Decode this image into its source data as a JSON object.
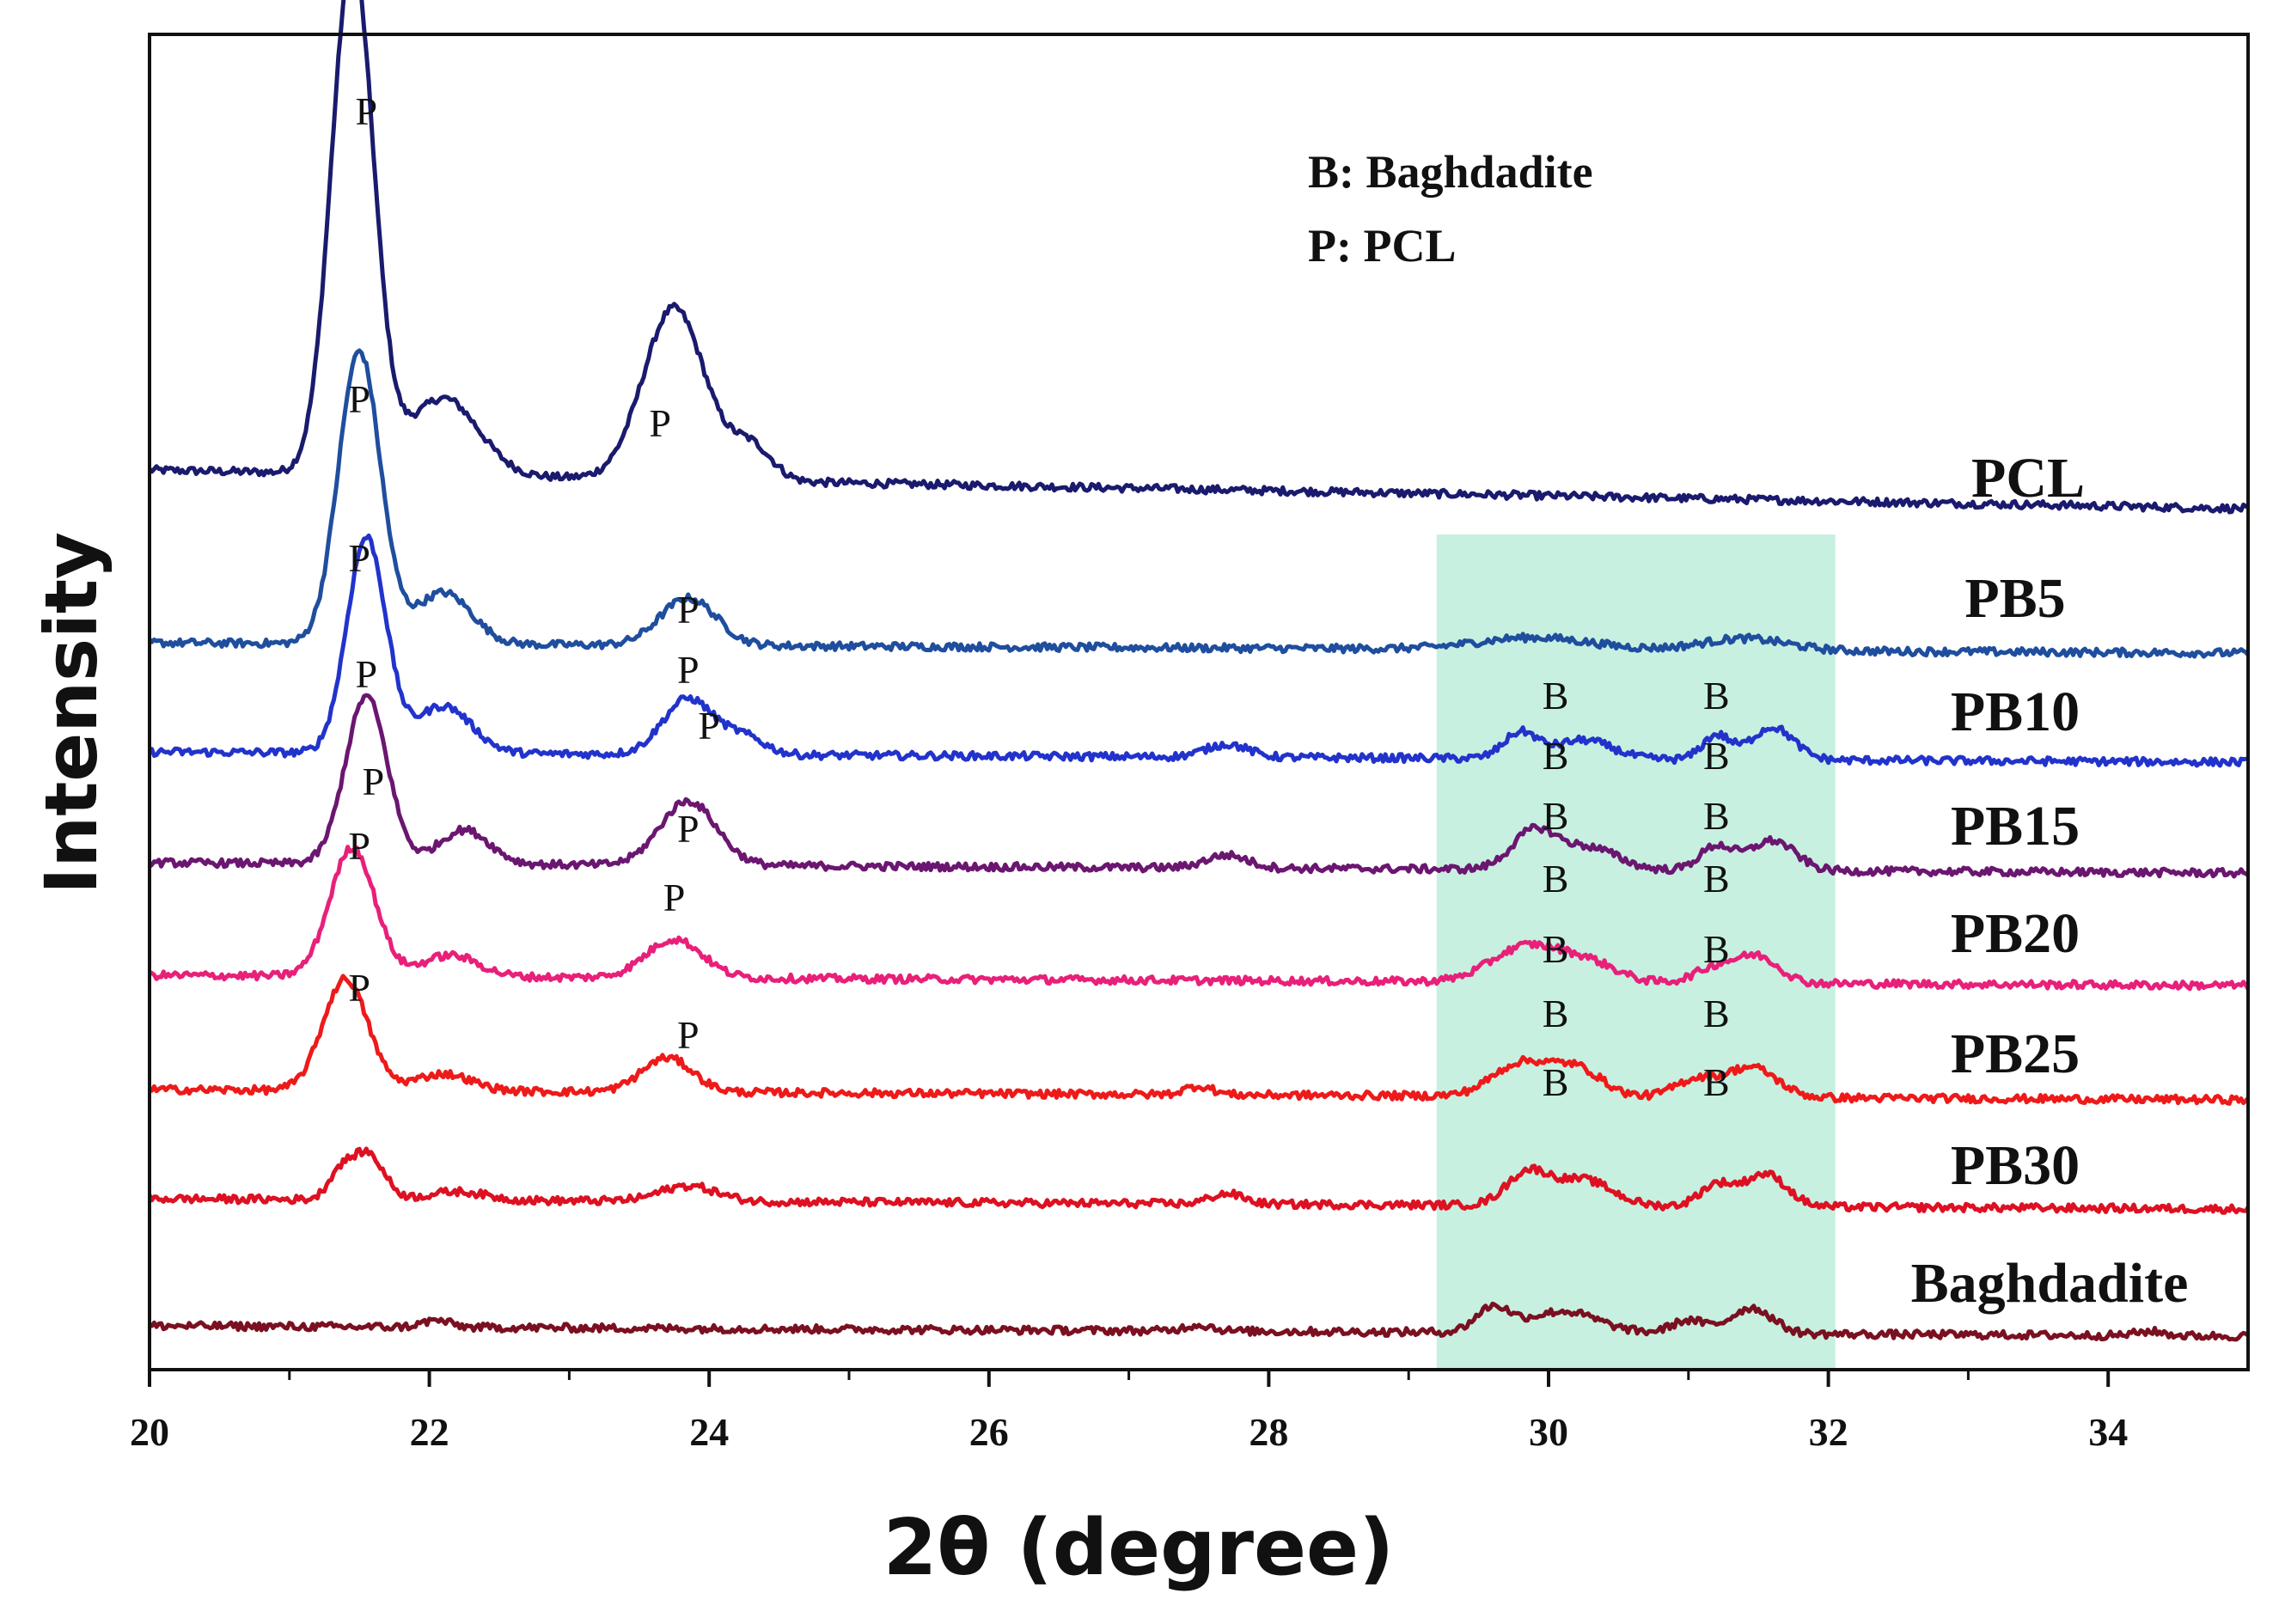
{
  "chart_data": {
    "type": "line",
    "title": "",
    "xlabel": "2θ (degree)",
    "ylabel": "Intensity",
    "xlim": [
      20,
      35
    ],
    "xticks": [
      "20",
      "22",
      "24",
      "26",
      "28",
      "30",
      "32",
      "34"
    ],
    "tick_values": [
      20,
      22,
      24,
      26,
      28,
      30,
      32,
      34
    ],
    "grid": false,
    "legend_notes": [
      "B: Baghdadite",
      "P: PCL"
    ],
    "highlight_region": {
      "x_from": 29.2,
      "x_to": 32.05,
      "color": "#c8f0e0"
    },
    "series": [
      {
        "name": "PCL",
        "color": "#1a1a6e",
        "baseline": 370,
        "end_value": 20,
        "amp_scale": 1.0,
        "peaks": [
          [
            21.45,
            0.15,
            600
          ],
          [
            22.1,
            0.25,
            90
          ],
          [
            23.75,
            0.22,
            200
          ],
          [
            24.3,
            0.15,
            40
          ]
        ]
      },
      {
        "name": "PB5",
        "color": "#1f4e9e",
        "baseline": 290,
        "end_value": 0,
        "amp_scale": 1.0,
        "peaks": [
          [
            21.5,
            0.15,
            340
          ],
          [
            22.1,
            0.2,
            60
          ],
          [
            23.85,
            0.2,
            55
          ],
          [
            29.9,
            0.4,
            14
          ],
          [
            31.4,
            0.3,
            14
          ]
        ]
      },
      {
        "name": "PB10",
        "color": "#2233cc",
        "baseline": 215,
        "end_value": 0,
        "amp_scale": 1.0,
        "peaks": [
          [
            21.55,
            0.14,
            250
          ],
          [
            22.1,
            0.2,
            55
          ],
          [
            23.85,
            0.18,
            65
          ],
          [
            24.25,
            0.15,
            20
          ],
          [
            27.7,
            0.15,
            15
          ],
          [
            29.8,
            0.12,
            30
          ],
          [
            30.25,
            0.2,
            22
          ],
          [
            31.2,
            0.1,
            28
          ],
          [
            31.6,
            0.15,
            38
          ]
        ]
      },
      {
        "name": "PB15",
        "color": "#6b1670",
        "baseline": 135,
        "end_value": 0,
        "amp_scale": 1.0,
        "peaks": [
          [
            21.55,
            0.15,
            195
          ],
          [
            22.25,
            0.18,
            40
          ],
          [
            23.85,
            0.2,
            75
          ],
          [
            27.7,
            0.15,
            15
          ],
          [
            29.9,
            0.16,
            45
          ],
          [
            30.3,
            0.2,
            25
          ],
          [
            31.2,
            0.12,
            28
          ],
          [
            31.6,
            0.16,
            35
          ]
        ]
      },
      {
        "name": "PB20",
        "color": "#e8207a",
        "baseline": 60,
        "end_value": 0,
        "amp_scale": 1.0,
        "peaks": [
          [
            21.45,
            0.16,
            150
          ],
          [
            22.15,
            0.2,
            25
          ],
          [
            23.75,
            0.2,
            45
          ],
          [
            29.85,
            0.25,
            42
          ],
          [
            30.3,
            0.2,
            20
          ],
          [
            31.2,
            0.15,
            18
          ],
          [
            31.5,
            0.15,
            30
          ]
        ]
      },
      {
        "name": "PB25",
        "color": "#ee1a1a",
        "baseline": -18,
        "end_value": 0,
        "amp_scale": 1.0,
        "peaks": [
          [
            21.4,
            0.16,
            130
          ],
          [
            22.1,
            0.2,
            20
          ],
          [
            23.7,
            0.18,
            40
          ],
          [
            27.5,
            0.1,
            10
          ],
          [
            29.8,
            0.2,
            38
          ],
          [
            30.2,
            0.18,
            32
          ],
          [
            31.05,
            0.15,
            20
          ],
          [
            31.45,
            0.18,
            35
          ]
        ]
      },
      {
        "name": "PB30",
        "color": "#dd1122",
        "baseline": -95,
        "end_value": 0,
        "amp_scale": 1.0,
        "peaks": [
          [
            21.55,
            0.12,
            55
          ],
          [
            21.35,
            0.08,
            25
          ],
          [
            22.2,
            0.2,
            10
          ],
          [
            23.85,
            0.2,
            18
          ],
          [
            27.7,
            0.12,
            12
          ],
          [
            29.85,
            0.15,
            38
          ],
          [
            30.25,
            0.2,
            30
          ],
          [
            31.2,
            0.12,
            25
          ],
          [
            31.55,
            0.15,
            38
          ]
        ]
      },
      {
        "name": "Baghdadite",
        "color": "#7a1020",
        "baseline": -180,
        "end_value": 0,
        "amp_scale": 1.0,
        "peaks": [
          [
            22.05,
            0.1,
            8
          ],
          [
            27.5,
            0.1,
            7
          ],
          [
            29.6,
            0.12,
            28
          ],
          [
            30.1,
            0.25,
            25
          ],
          [
            31.0,
            0.12,
            15
          ],
          [
            31.45,
            0.15,
            30
          ],
          [
            34.3,
            0.1,
            5
          ]
        ]
      }
    ],
    "peak_labels": [
      {
        "text": "P",
        "x": 21.55,
        "value": 975
      },
      {
        "text": "P",
        "x": 23.65,
        "value": 612
      },
      {
        "text": "P",
        "x": 21.5,
        "value": 640
      },
      {
        "text": "P",
        "x": 23.85,
        "value": 395
      },
      {
        "text": "P",
        "x": 21.5,
        "value": 455
      },
      {
        "text": "P",
        "x": 23.85,
        "value": 325
      },
      {
        "text": "P",
        "x": 21.55,
        "value": 320
      },
      {
        "text": "P",
        "x": 24.0,
        "value": 260
      },
      {
        "text": "P",
        "x": 21.6,
        "value": 195
      },
      {
        "text": "P",
        "x": 23.85,
        "value": 140
      },
      {
        "text": "P",
        "x": 21.5,
        "value": 120
      },
      {
        "text": "P",
        "x": 23.75,
        "value": 60
      },
      {
        "text": "P",
        "x": 21.5,
        "value": -45
      },
      {
        "text": "P",
        "x": 23.85,
        "value": -100
      },
      {
        "text": "B",
        "x": 30.05,
        "value": 295
      },
      {
        "text": "B",
        "x": 31.2,
        "value": 295
      },
      {
        "text": "B",
        "x": 30.05,
        "value": 225
      },
      {
        "text": "B",
        "x": 31.2,
        "value": 225
      },
      {
        "text": "B",
        "x": 30.05,
        "value": 155
      },
      {
        "text": "B",
        "x": 31.2,
        "value": 155
      },
      {
        "text": "B",
        "x": 30.05,
        "value": 82
      },
      {
        "text": "B",
        "x": 31.2,
        "value": 82
      },
      {
        "text": "B",
        "x": 30.05,
        "value": 0
      },
      {
        "text": "B",
        "x": 31.2,
        "value": 0
      },
      {
        "text": "B",
        "x": 30.05,
        "value": -75
      },
      {
        "text": "B",
        "x": 31.2,
        "value": -75
      },
      {
        "text": "B",
        "x": 30.05,
        "value": -155
      },
      {
        "text": "B",
        "x": 31.2,
        "value": -155
      }
    ]
  }
}
